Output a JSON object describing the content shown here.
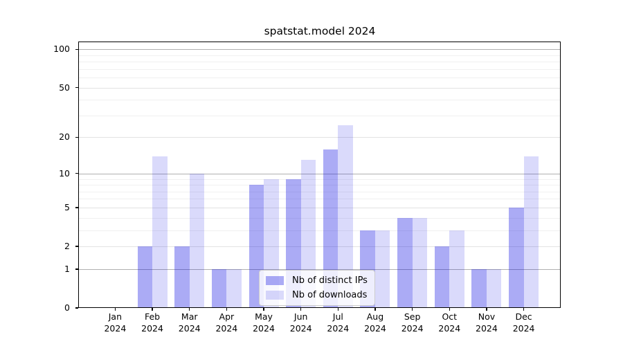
{
  "chart_data": {
    "type": "bar",
    "title": "spatstat.model 2024",
    "x_categories": [
      "Jan",
      "Feb",
      "Mar",
      "Apr",
      "May",
      "Jun",
      "Jul",
      "Aug",
      "Sep",
      "Oct",
      "Nov",
      "Dec"
    ],
    "x_year": "2024",
    "series": [
      {
        "name": "Nb of distinct IPs",
        "color": "rgba(10,10,225,0.34)",
        "values": [
          0,
          2,
          2,
          1,
          8,
          9,
          16,
          3,
          4,
          2,
          1,
          5
        ]
      },
      {
        "name": "Nb of downloads",
        "color": "rgba(10,10,225,0.15)",
        "values": [
          0,
          14,
          10,
          1,
          9,
          13,
          25,
          3,
          4,
          3,
          1,
          14
        ]
      }
    ],
    "y_scale": "log1p",
    "ylim": [
      0,
      115
    ],
    "y_tick_labels": [
      "0",
      "1",
      "2",
      "5",
      "10",
      "20",
      "50",
      "100"
    ],
    "y_tick_values": [
      0,
      1,
      2,
      5,
      10,
      20,
      50,
      100
    ],
    "y_pow10_gridlines": [
      1,
      10,
      100
    ],
    "y_mid_gridlines": [
      2,
      5,
      20,
      50
    ],
    "y_minor_gridlines": [
      3,
      4,
      6,
      7,
      8,
      9,
      30,
      40,
      60,
      70,
      80,
      90
    ],
    "grid": true,
    "legend_position": "lower center",
    "colors": {
      "grid_pow10": "#b0b0b0",
      "grid_mid": "#e2e2e2",
      "grid_minor": "#f0f0f0",
      "axis": "#000000",
      "background": "#ffffff"
    }
  }
}
